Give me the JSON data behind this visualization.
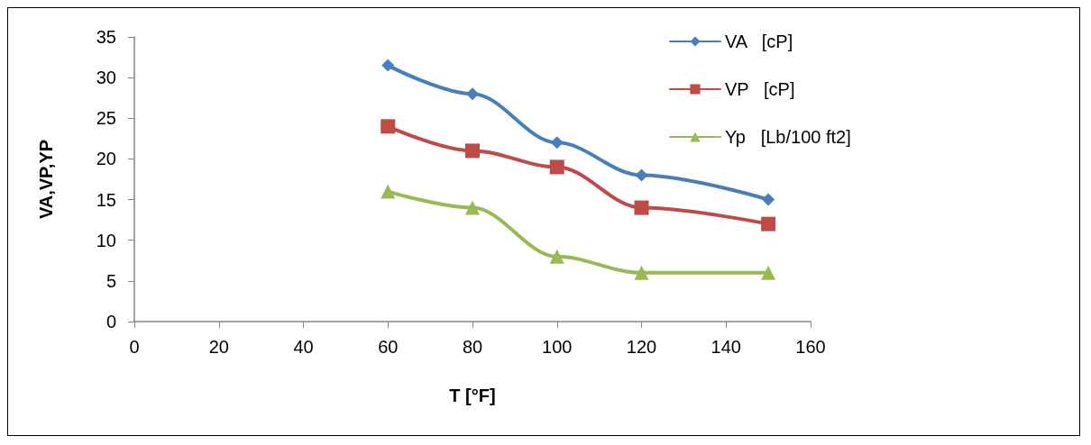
{
  "chart_data": {
    "type": "line",
    "xlabel": "T [°F]",
    "ylabel": "VA,VP,YP",
    "x": [
      60,
      80,
      100,
      120,
      150
    ],
    "series": [
      {
        "name": "VA   [cP]",
        "color": "#4a7ebb",
        "marker": "diamond",
        "values": [
          31.5,
          28,
          22,
          18,
          15
        ]
      },
      {
        "name": "VP   [cP]",
        "color": "#be4b48",
        "marker": "square",
        "values": [
          24,
          21,
          19,
          14,
          12
        ]
      },
      {
        "name": "Yp   [Lb/100 ft2]",
        "color": "#98b954",
        "marker": "triangle",
        "values": [
          16,
          14,
          8,
          6,
          6
        ]
      }
    ],
    "xlim": [
      0,
      160
    ],
    "xticks": [
      0,
      20,
      40,
      60,
      80,
      100,
      120,
      140,
      160
    ],
    "ylim": [
      0,
      35
    ],
    "yticks": [
      0,
      5,
      10,
      15,
      20,
      25,
      30,
      35
    ],
    "grid": false,
    "legend": "top right",
    "line_style": "solid"
  }
}
